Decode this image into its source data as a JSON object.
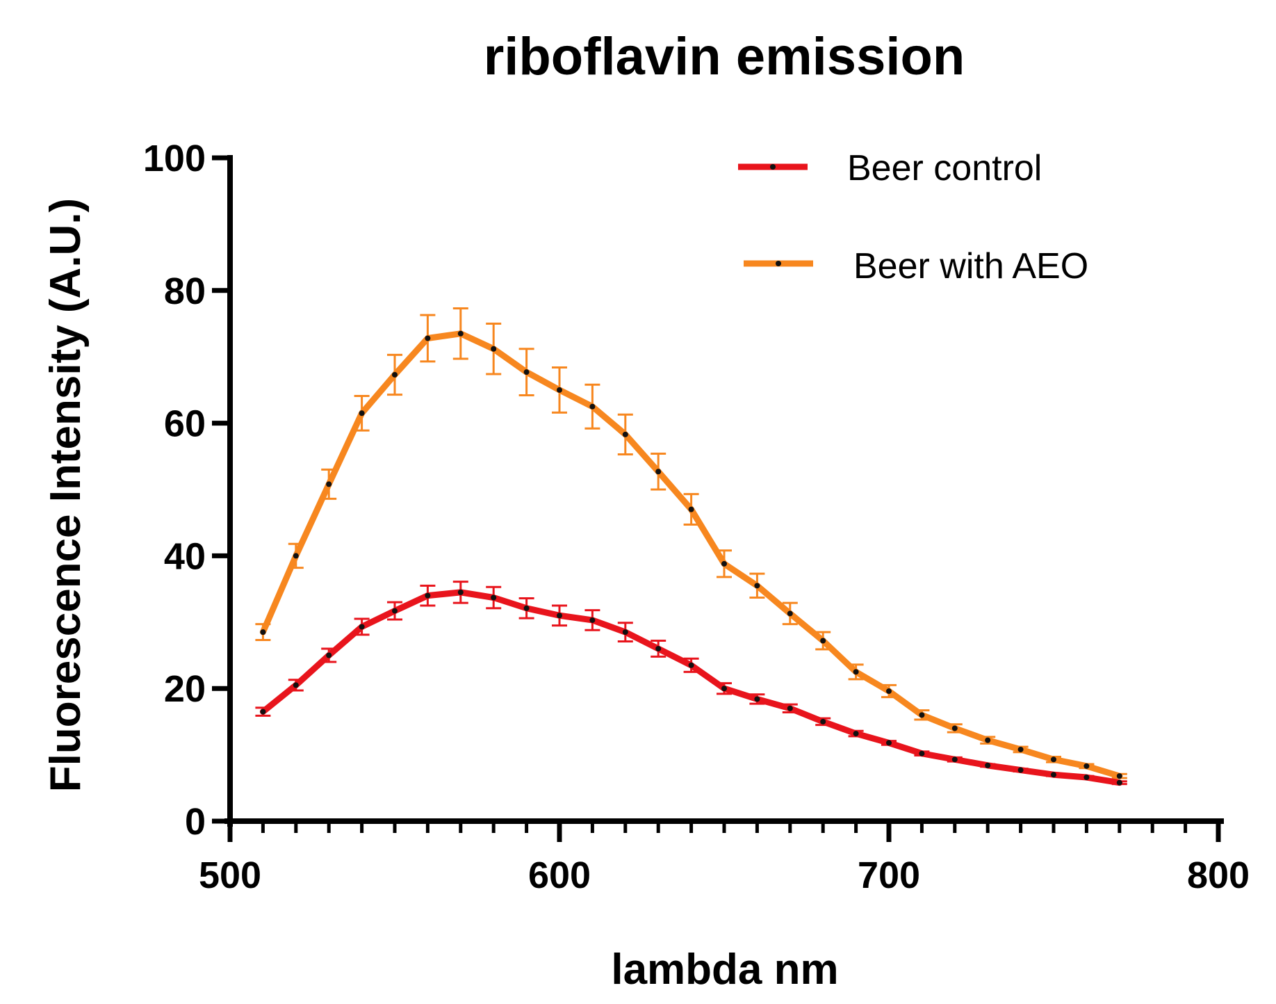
{
  "chart_data": {
    "type": "line",
    "title": "riboflavin emission",
    "xlabel": "lambda nm",
    "ylabel": "Fluorescence Intensity (A.U.)",
    "xlim": [
      500,
      800
    ],
    "ylim": [
      0,
      100
    ],
    "x_major_ticks": [
      500,
      600,
      700,
      800
    ],
    "x_minor_step": 10,
    "y_major_ticks": [
      0,
      20,
      40,
      60,
      80,
      100
    ],
    "x_tick_labels": [
      "500",
      "600",
      "700",
      "800"
    ],
    "y_tick_labels": [
      "0",
      "20",
      "40",
      "60",
      "80",
      "100"
    ],
    "x": [
      510,
      520,
      530,
      540,
      550,
      560,
      570,
      580,
      590,
      600,
      610,
      620,
      630,
      640,
      650,
      660,
      670,
      680,
      690,
      700,
      710,
      720,
      730,
      740,
      750,
      760,
      770
    ],
    "legend_position": "top-right",
    "series": [
      {
        "name": "Beer control",
        "color": "#e8141c",
        "values": [
          16.5,
          20.5,
          25.0,
          29.3,
          31.7,
          34.0,
          34.5,
          33.7,
          32.1,
          31.0,
          30.3,
          28.5,
          26.0,
          23.5,
          20.0,
          18.4,
          17.0,
          15.0,
          13.2,
          11.8,
          10.2,
          9.3,
          8.4,
          7.7,
          7.0,
          6.6,
          5.8
        ],
        "errors": [
          0.6,
          0.8,
          1.0,
          1.2,
          1.3,
          1.5,
          1.6,
          1.6,
          1.5,
          1.5,
          1.5,
          1.4,
          1.2,
          1.0,
          0.8,
          0.7,
          0.6,
          0.5,
          0.4,
          0.3,
          0.3,
          0.3,
          0.2,
          0.2,
          0.2,
          0.2,
          0.2
        ]
      },
      {
        "name": "Beer with AEO",
        "color": "#f7871f",
        "values": [
          28.5,
          40.0,
          50.8,
          61.5,
          67.3,
          72.8,
          73.5,
          71.2,
          67.7,
          65.0,
          62.5,
          58.3,
          52.7,
          47.0,
          38.8,
          35.5,
          31.3,
          27.2,
          22.5,
          19.6,
          16.0,
          14.0,
          12.2,
          10.8,
          9.3,
          8.3,
          6.8
        ],
        "errors": [
          1.2,
          1.8,
          2.2,
          2.6,
          3.0,
          3.5,
          3.8,
          3.8,
          3.5,
          3.4,
          3.3,
          3.0,
          2.7,
          2.3,
          2.0,
          1.8,
          1.6,
          1.3,
          1.1,
          0.9,
          0.7,
          0.6,
          0.5,
          0.4,
          0.4,
          0.3,
          0.3
        ]
      }
    ]
  }
}
